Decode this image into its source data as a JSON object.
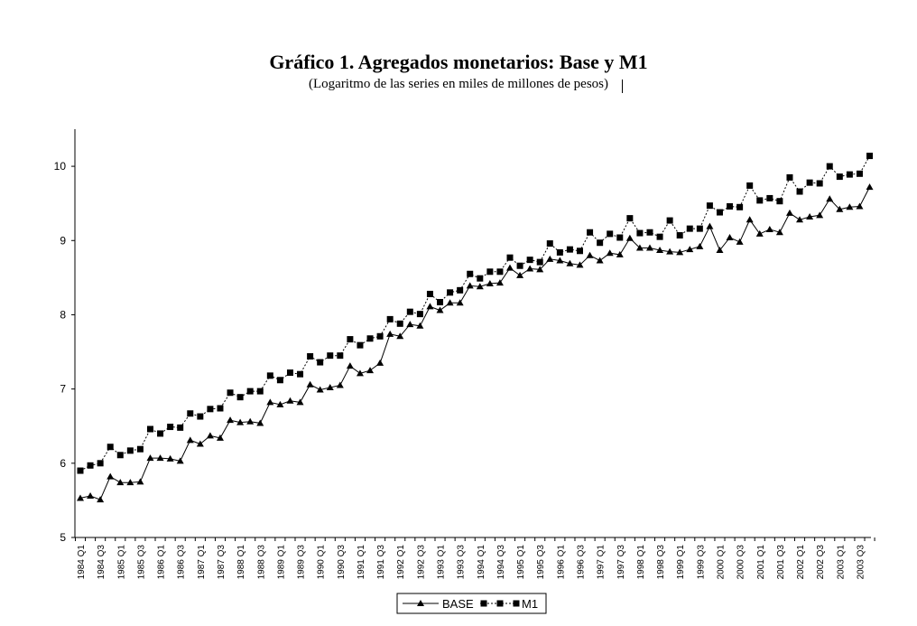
{
  "title": "Gráfico 1. Agregados monetarios: Base y M1",
  "subtitle": "(Logaritmo de las series en miles de millones de pesos)",
  "chart_data": {
    "type": "line",
    "title": "Gráfico 1. Agregados monetarios: Base y M1",
    "subtitle": "(Logaritmo de las series en miles de millones de pesos)",
    "xlabel": "",
    "ylabel": "",
    "ylim": [
      5,
      10.5
    ],
    "yticks": [
      5,
      6,
      7,
      8,
      9,
      10
    ],
    "grid": false,
    "legend_position": "bottom",
    "x": [
      "1984 Q1",
      "1984 Q2",
      "1984 Q3",
      "1984 Q4",
      "1985 Q1",
      "1985 Q2",
      "1985 Q3",
      "1985 Q4",
      "1986 Q1",
      "1986 Q2",
      "1986 Q3",
      "1986 Q4",
      "1987 Q1",
      "1987 Q2",
      "1987 Q3",
      "1987 Q4",
      "1988 Q1",
      "1988 Q2",
      "1988 Q3",
      "1988 Q4",
      "1989 Q1",
      "1989 Q2",
      "1989 Q3",
      "1989 Q4",
      "1990 Q1",
      "1990 Q2",
      "1990 Q3",
      "1990 Q4",
      "1991 Q1",
      "1991 Q2",
      "1991 Q3",
      "1991 Q4",
      "1992 Q1",
      "1992 Q2",
      "1992 Q3",
      "1992 Q4",
      "1993 Q1",
      "1993 Q2",
      "1993 Q3",
      "1993 Q4",
      "1994 Q1",
      "1994 Q2",
      "1994 Q3",
      "1994 Q4",
      "1995 Q1",
      "1995 Q2",
      "1995 Q3",
      "1995 Q4",
      "1996 Q1",
      "1996 Q2",
      "1996 Q3",
      "1996 Q4",
      "1997 Q1",
      "1997 Q2",
      "1997 Q3",
      "1997 Q4",
      "1998 Q1",
      "1998 Q2",
      "1998 Q3",
      "1998 Q4",
      "1999 Q1",
      "1999 Q2",
      "1999 Q3",
      "1999 Q4",
      "2000 Q1",
      "2000 Q2",
      "2000 Q3",
      "2000 Q4",
      "2001 Q1",
      "2001 Q2",
      "2001 Q3",
      "2001 Q4",
      "2002 Q1",
      "2002 Q2",
      "2002 Q3",
      "2002 Q4",
      "2003 Q1",
      "2003 Q2",
      "2003 Q3",
      "2003 Q4"
    ],
    "x_tick_labels": [
      "1984 Q1",
      "1984 Q3",
      "1985 Q1",
      "1985 Q3",
      "1986 Q1",
      "1986 Q3",
      "1987 Q1",
      "1987 Q3",
      "1988 Q1",
      "1988 Q3",
      "1989 Q1",
      "1989 Q3",
      "1990 Q1",
      "1990 Q3",
      "1991 Q1",
      "1991 Q3",
      "1992 Q1",
      "1992 Q3",
      "1993 Q1",
      "1993 Q3",
      "1994 Q1",
      "1994 Q3",
      "1995 Q1",
      "1995 Q3",
      "1996 Q1",
      "1996 Q3",
      "1997 Q1",
      "1997 Q3",
      "1998 Q1",
      "1998 Q3",
      "1999 Q1",
      "1999 Q3",
      "2000 Q1",
      "2000 Q3",
      "2001 Q1",
      "2001 Q3",
      "2002 Q1",
      "2002 Q3",
      "2003 Q1",
      "2003 Q3"
    ],
    "series": [
      {
        "name": "BASE",
        "marker": "triangle",
        "line": "solid",
        "color": "#000000",
        "values": [
          5.53,
          5.56,
          5.51,
          5.82,
          5.74,
          5.74,
          5.75,
          6.07,
          6.07,
          6.06,
          6.03,
          6.31,
          6.26,
          6.37,
          6.34,
          6.58,
          6.55,
          6.56,
          6.54,
          6.82,
          6.79,
          6.84,
          6.82,
          7.06,
          6.99,
          7.02,
          7.05,
          7.31,
          7.21,
          7.25,
          7.35,
          7.74,
          7.71,
          7.87,
          7.85,
          8.11,
          8.06,
          8.16,
          8.16,
          8.39,
          8.38,
          8.42,
          8.43,
          8.63,
          8.53,
          8.62,
          8.61,
          8.75,
          8.73,
          8.69,
          8.67,
          8.8,
          8.73,
          8.83,
          8.81,
          9.03,
          8.9,
          8.9,
          8.87,
          8.85,
          8.84,
          8.88,
          8.92,
          9.19,
          8.87,
          9.04,
          8.98,
          9.28,
          9.09,
          9.15,
          9.11,
          9.37,
          9.28,
          9.32,
          9.34,
          9.56,
          9.42,
          9.45,
          9.46,
          9.72
        ]
      },
      {
        "name": "M1",
        "marker": "square",
        "line": "dotted",
        "color": "#000000",
        "values": [
          5.9,
          5.97,
          6.0,
          6.22,
          6.11,
          6.17,
          6.19,
          6.46,
          6.4,
          6.49,
          6.48,
          6.67,
          6.63,
          6.73,
          6.74,
          6.95,
          6.89,
          6.97,
          6.97,
          7.18,
          7.12,
          7.22,
          7.2,
          7.44,
          7.36,
          7.45,
          7.45,
          7.67,
          7.59,
          7.68,
          7.71,
          7.94,
          7.88,
          8.04,
          8.01,
          8.28,
          8.17,
          8.3,
          8.33,
          8.55,
          8.49,
          8.58,
          8.58,
          8.77,
          8.66,
          8.74,
          8.71,
          8.96,
          8.84,
          8.88,
          8.86,
          9.11,
          8.97,
          9.09,
          9.04,
          9.3,
          9.1,
          9.11,
          9.05,
          9.27,
          9.07,
          9.16,
          9.16,
          9.47,
          9.38,
          9.46,
          9.45,
          9.74,
          9.54,
          9.57,
          9.53,
          9.85,
          9.66,
          9.78,
          9.77,
          10.0,
          9.86,
          9.89,
          9.9,
          10.14
        ]
      }
    ]
  }
}
